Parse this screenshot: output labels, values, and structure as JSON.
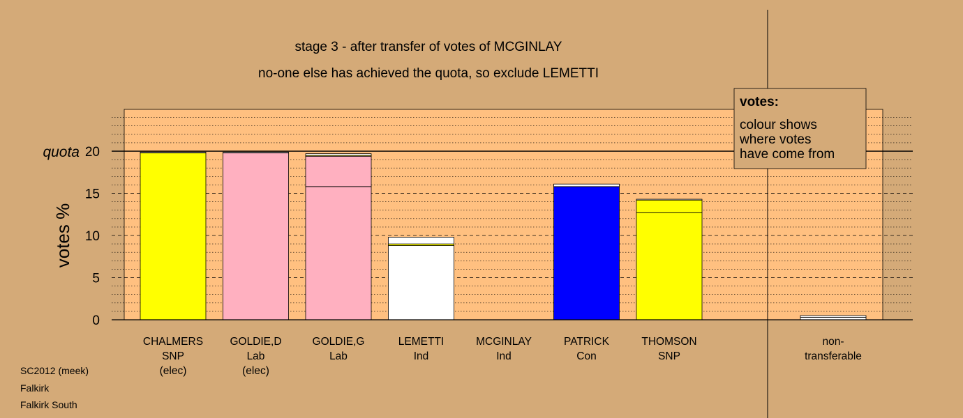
{
  "chart_data": {
    "type": "bar",
    "stacked": true,
    "title_lines": [
      "stage 3 - after transfer of votes of MCGINLAY",
      "no-one else has achieved the quota, so exclude LEMETTI"
    ],
    "ylabel": "votes %",
    "ylim": [
      0,
      25
    ],
    "yticks": [
      0,
      5,
      10,
      15,
      20
    ],
    "quota": {
      "label": "quota",
      "value": 20
    },
    "candidates": [
      {
        "name": "CHALMERS",
        "party": "SNP",
        "note": "(elec)",
        "segments": [
          {
            "value": 19.8,
            "color": "#ffff00"
          },
          {
            "value": 0.1,
            "color": "#ffffff"
          }
        ]
      },
      {
        "name": "GOLDIE,D",
        "party": "Lab",
        "note": "(elec)",
        "segments": [
          {
            "value": 19.8,
            "color": "#ffb0c0"
          },
          {
            "value": 0.1,
            "color": "#ffffff"
          }
        ]
      },
      {
        "name": "GOLDIE,G",
        "party": "Lab",
        "note": "",
        "segments": [
          {
            "value": 15.8,
            "color": "#ffb0c0"
          },
          {
            "value": 3.6,
            "color": "#ffb0c0"
          },
          {
            "value": 0.1,
            "color": "#ffff00"
          },
          {
            "value": 0.2,
            "color": "#ffffff"
          }
        ]
      },
      {
        "name": "LEMETTI",
        "party": "Ind",
        "note": "",
        "segments": [
          {
            "value": 8.8,
            "color": "#ffffff"
          },
          {
            "value": 0.2,
            "color": "#ffff00"
          },
          {
            "value": 0.8,
            "color": "#ffffff"
          }
        ]
      },
      {
        "name": "MCGINLAY",
        "party": "Ind",
        "note": "",
        "segments": []
      },
      {
        "name": "PATRICK",
        "party": "Con",
        "note": "",
        "segments": [
          {
            "value": 15.8,
            "color": "#0000ff"
          },
          {
            "value": 0.3,
            "color": "#ffffff"
          }
        ]
      },
      {
        "name": "THOMSON",
        "party": "SNP",
        "note": "",
        "segments": [
          {
            "value": 12.7,
            "color": "#ffff00"
          },
          {
            "value": 1.5,
            "color": "#ffff00"
          },
          {
            "value": 0.1,
            "color": "#ffffff"
          }
        ]
      }
    ],
    "nontransferable": {
      "label_lines": [
        "non-",
        "transferable"
      ],
      "segments": [
        {
          "value": 0.3,
          "color": "#ffffff"
        },
        {
          "value": 0.2,
          "color": "#ffffff"
        }
      ]
    },
    "legend": {
      "title": "votes:",
      "lines": [
        "colour shows",
        "where votes",
        "have come from"
      ]
    },
    "colors": {
      "background": "#d4aa78",
      "panel": "#ffc080"
    }
  },
  "footer": {
    "lines": [
      "SC2012 (meek)",
      "Falkirk",
      "Falkirk South"
    ]
  }
}
